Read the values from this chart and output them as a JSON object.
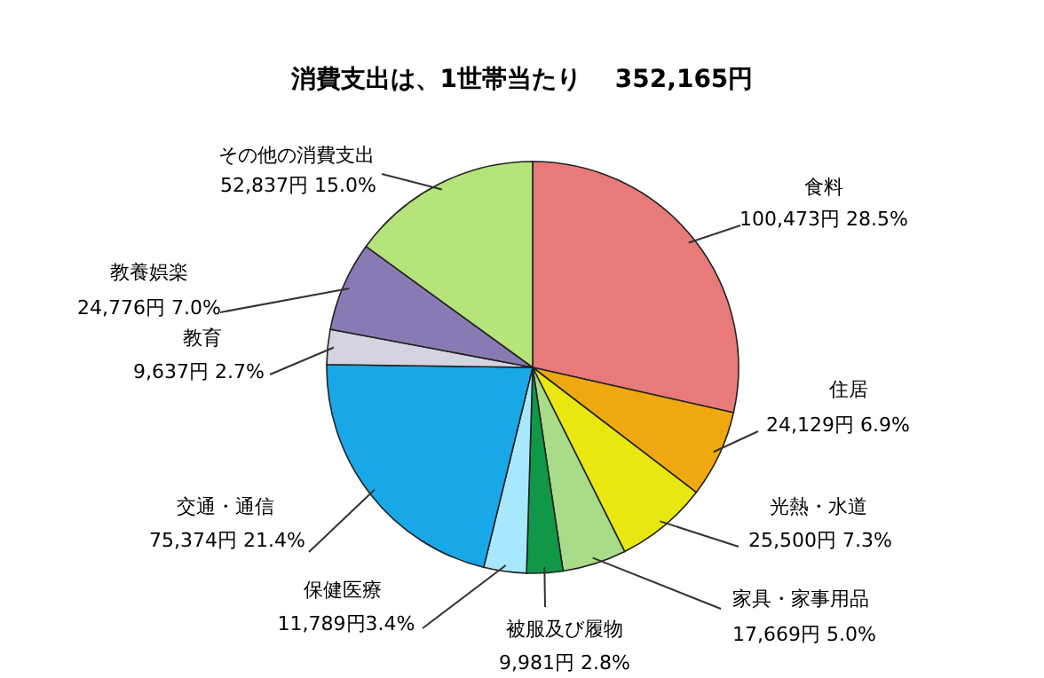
{
  "chart_data": {
    "type": "pie",
    "title": "消費支出は、1世帯当たり　 352,165円",
    "categories": [
      "食料",
      "住居",
      "光熱・水道",
      "家具・家事用品",
      "被服及び履物",
      "保健医療",
      "交通・通信",
      "教育",
      "教養娯楽",
      "その他の消費支出"
    ],
    "values": [
      100473,
      24129,
      25500,
      17669,
      9981,
      11789,
      75374,
      9637,
      24776,
      52837
    ],
    "value_labels": [
      "100,473円 28.5%",
      "24,129円 6.9%",
      "25,500円 7.3%",
      "17,669円 5.0%",
      "9,981円 2.8%",
      "11,789円3.4%",
      "75,374円 21.4%",
      "9,637円 2.7%",
      "24,776円 7.0%",
      "52,837円 15.0%"
    ],
    "colors": [
      "#e87a7a",
      "#f0a810",
      "#e8e810",
      "#a8dc88",
      "#109848",
      "#a8e8ff",
      "#18a8e8",
      "#d4d4e0",
      "#8a7ab4",
      "#b4e47a"
    ]
  }
}
